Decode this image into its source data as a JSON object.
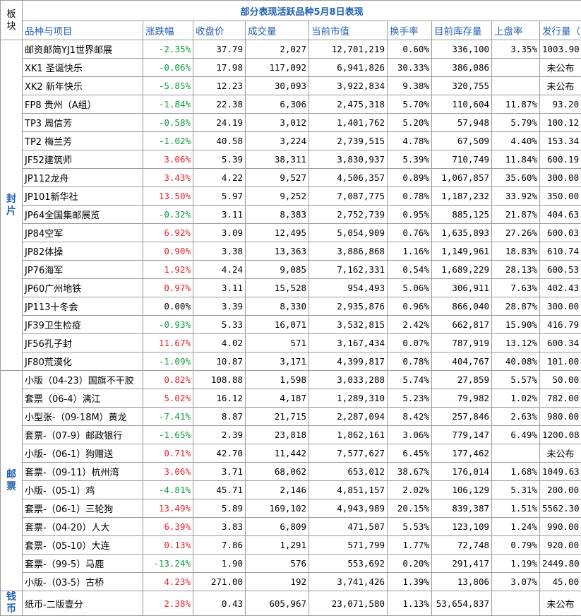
{
  "title": "部分表现活跃品种5月8日表现",
  "corner_label": "板块",
  "headers": [
    "品种与项目",
    "涨跌幅",
    "收盘价",
    "成交量",
    "当前市值",
    "换手率",
    "目前库存量",
    "上盘率",
    "发行量（万）"
  ],
  "colors": {
    "up": "#e8212a",
    "down": "#0a9c3a",
    "header": "#1f5fb3"
  },
  "blocks": [
    {
      "label": "封片",
      "rows": [
        {
          "name": "邮资邮简YJ1世界邮展",
          "change": "-2.35%",
          "dir": "down",
          "close": "37.79",
          "volume": "2,027",
          "mcap": "12,701,219",
          "turnover": "0.60%",
          "stock": "336,100",
          "rate": "3.35%",
          "issue": "1003.90"
        },
        {
          "name": "XK1 圣诞快乐",
          "change": "-0.06%",
          "dir": "down",
          "close": "17.98",
          "volume": "117,092",
          "mcap": "6,941,826",
          "turnover": "30.33%",
          "stock": "386,086",
          "rate": "",
          "issue": "未公布"
        },
        {
          "name": "XK2 新年快乐",
          "change": "-5.85%",
          "dir": "down",
          "close": "12.23",
          "volume": "30,093",
          "mcap": "3,922,834",
          "turnover": "9.38%",
          "stock": "320,755",
          "rate": "",
          "issue": "未公布"
        },
        {
          "name": "FP8 贵州（A组）",
          "change": "-1.84%",
          "dir": "down",
          "close": "22.38",
          "volume": "6,306",
          "mcap": "2,475,318",
          "turnover": "5.70%",
          "stock": "110,604",
          "rate": "11.87%",
          "issue": "93.20"
        },
        {
          "name": "TP3 周信芳",
          "change": "-0.58%",
          "dir": "down",
          "close": "24.19",
          "volume": "3,012",
          "mcap": "1,401,762",
          "turnover": "5.20%",
          "stock": "57,948",
          "rate": "5.79%",
          "issue": "100.12"
        },
        {
          "name": "TP2 梅兰芳",
          "change": "-1.02%",
          "dir": "down",
          "close": "40.58",
          "volume": "3,224",
          "mcap": "2,739,515",
          "turnover": "4.78%",
          "stock": "67,509",
          "rate": "4.40%",
          "issue": "153.34"
        },
        {
          "name": "JF52建筑师",
          "change": "3.06%",
          "dir": "up",
          "close": "5.39",
          "volume": "38,311",
          "mcap": "3,830,937",
          "turnover": "5.39%",
          "stock": "710,749",
          "rate": "11.84%",
          "issue": "600.19"
        },
        {
          "name": "JP112龙舟",
          "change": "3.43%",
          "dir": "up",
          "close": "4.22",
          "volume": "9,527",
          "mcap": "4,506,357",
          "turnover": "0.89%",
          "stock": "1,067,857",
          "rate": "35.60%",
          "issue": "300.00"
        },
        {
          "name": "JP101新华社",
          "change": "13.50%",
          "dir": "up",
          "close": "5.97",
          "volume": "9,252",
          "mcap": "7,087,775",
          "turnover": "0.78%",
          "stock": "1,187,232",
          "rate": "33.92%",
          "issue": "350.00"
        },
        {
          "name": "JP64全国集邮展览",
          "change": "-0.32%",
          "dir": "down",
          "close": "3.11",
          "volume": "8,383",
          "mcap": "2,752,739",
          "turnover": "0.95%",
          "stock": "885,125",
          "rate": "21.87%",
          "issue": "404.63"
        },
        {
          "name": "JP84空军",
          "change": "6.92%",
          "dir": "up",
          "close": "3.09",
          "volume": "12,495",
          "mcap": "5,054,909",
          "turnover": "0.76%",
          "stock": "1,635,893",
          "rate": "27.26%",
          "issue": "600.03"
        },
        {
          "name": "JP82体操",
          "change": "0.90%",
          "dir": "up",
          "close": "3.38",
          "volume": "13,363",
          "mcap": "3,886,868",
          "turnover": "1.16%",
          "stock": "1,149,961",
          "rate": "18.83%",
          "issue": "610.74"
        },
        {
          "name": "JP76海军",
          "change": "1.92%",
          "dir": "up",
          "close": "4.24",
          "volume": "9,085",
          "mcap": "7,162,331",
          "turnover": "0.54%",
          "stock": "1,689,229",
          "rate": "28.13%",
          "issue": "600.53"
        },
        {
          "name": "JP60广州地铁",
          "change": "0.97%",
          "dir": "up",
          "close": "3.11",
          "volume": "15,528",
          "mcap": "954,493",
          "turnover": "5.06%",
          "stock": "306,911",
          "rate": "7.63%",
          "issue": "402.43"
        },
        {
          "name": "JP113十冬会",
          "change": "0.00%",
          "dir": "flat",
          "close": "3.39",
          "volume": "8,330",
          "mcap": "2,935,876",
          "turnover": "0.96%",
          "stock": "866,040",
          "rate": "28.87%",
          "issue": "300.00"
        },
        {
          "name": "JF39卫生检疫",
          "change": "-0.93%",
          "dir": "down",
          "close": "5.33",
          "volume": "16,071",
          "mcap": "3,532,815",
          "turnover": "2.42%",
          "stock": "662,817",
          "rate": "15.90%",
          "issue": "416.79"
        },
        {
          "name": "JF56孔子封",
          "change": "11.67%",
          "dir": "up",
          "close": "4.02",
          "volume": "571",
          "mcap": "3,167,434",
          "turnover": "0.07%",
          "stock": "787,919",
          "rate": "13.12%",
          "issue": "600.34"
        },
        {
          "name": "JF80荒漠化",
          "change": "-1.09%",
          "dir": "down",
          "close": "10.87",
          "volume": "3,171",
          "mcap": "4,399,817",
          "turnover": "0.78%",
          "stock": "404,767",
          "rate": "40.08%",
          "issue": "101.00"
        }
      ]
    },
    {
      "label": "邮票",
      "rows": [
        {
          "name": "小版（04-23）国旗不干胶",
          "change": "0.82%",
          "dir": "up",
          "close": "108.88",
          "volume": "1,598",
          "mcap": "3,033,288",
          "turnover": "5.74%",
          "stock": "27,859",
          "rate": "5.57%",
          "issue": "50.00"
        },
        {
          "name": "套票（06-4）漓江",
          "change": "5.02%",
          "dir": "up",
          "close": "16.12",
          "volume": "4,187",
          "mcap": "1,289,310",
          "turnover": "5.23%",
          "stock": "79,982",
          "rate": "1.02%",
          "issue": "782.00"
        },
        {
          "name": "小型张-（09-18M）黄龙",
          "change": "-7.41%",
          "dir": "down",
          "close": "8.87",
          "volume": "21,715",
          "mcap": "2,287,094",
          "turnover": "8.42%",
          "stock": "257,846",
          "rate": "2.63%",
          "issue": "980.00"
        },
        {
          "name": "套票-（07-9）邮政银行",
          "change": "-1.65%",
          "dir": "down",
          "close": "2.39",
          "volume": "23,818",
          "mcap": "1,862,161",
          "turnover": "3.06%",
          "stock": "779,147",
          "rate": "6.49%",
          "issue": "1200.08"
        },
        {
          "name": "小版-（06-1）狗赠送",
          "change": "0.71%",
          "dir": "up",
          "close": "42.70",
          "volume": "11,442",
          "mcap": "7,577,627",
          "turnover": "6.45%",
          "stock": "177,462",
          "rate": "",
          "issue": "未公布"
        },
        {
          "name": "套票-（09-11）杭州湾",
          "change": "3.06%",
          "dir": "up",
          "close": "3.71",
          "volume": "68,062",
          "mcap": "653,012",
          "turnover": "38.67%",
          "stock": "176,014",
          "rate": "1.68%",
          "issue": "1049.63"
        },
        {
          "name": "小版-（05-1）鸡",
          "change": "-4.81%",
          "dir": "down",
          "close": "45.71",
          "volume": "2,146",
          "mcap": "4,851,157",
          "turnover": "2.02%",
          "stock": "106,129",
          "rate": "5.31%",
          "issue": "200.00"
        },
        {
          "name": "套票-（06-1）三轮狗",
          "change": "13.49%",
          "dir": "up",
          "close": "5.89",
          "volume": "169,102",
          "mcap": "4,943,989",
          "turnover": "20.15%",
          "stock": "839,387",
          "rate": "1.51%",
          "issue": "5562.30"
        },
        {
          "name": "套票-（04-20）人大",
          "change": "6.39%",
          "dir": "up",
          "close": "3.83",
          "volume": "6,809",
          "mcap": "471,507",
          "turnover": "5.53%",
          "stock": "123,109",
          "rate": "1.24%",
          "issue": "990.00"
        },
        {
          "name": "套票-（05-10）大连",
          "change": "0.13%",
          "dir": "up",
          "close": "7.86",
          "volume": "1,291",
          "mcap": "571,799",
          "turnover": "1.77%",
          "stock": "72,748",
          "rate": "0.79%",
          "issue": "920.00"
        },
        {
          "name": "套票-（99-5）马鹿",
          "change": "-13.24%",
          "dir": "down",
          "close": "1.90",
          "volume": "576",
          "mcap": "553,692",
          "turnover": "0.20%",
          "stock": "291,417",
          "rate": "1.19%",
          "issue": "2449.80"
        },
        {
          "name": "小版-（03-5）古桥",
          "change": "4.23%",
          "dir": "up",
          "close": "271.00",
          "volume": "192",
          "mcap": "3,741,426",
          "turnover": "1.39%",
          "stock": "13,806",
          "rate": "3.07%",
          "issue": "45.00"
        }
      ]
    },
    {
      "label": "钱币",
      "rows": [
        {
          "name": "纸币-二版壹分",
          "change": "2.38%",
          "dir": "up",
          "close": "0.43",
          "volume": "605,967",
          "mcap": "23,071,580",
          "turnover": "1.13%",
          "stock": "53,654,837",
          "rate": "",
          "issue": "未公布"
        }
      ]
    }
  ]
}
